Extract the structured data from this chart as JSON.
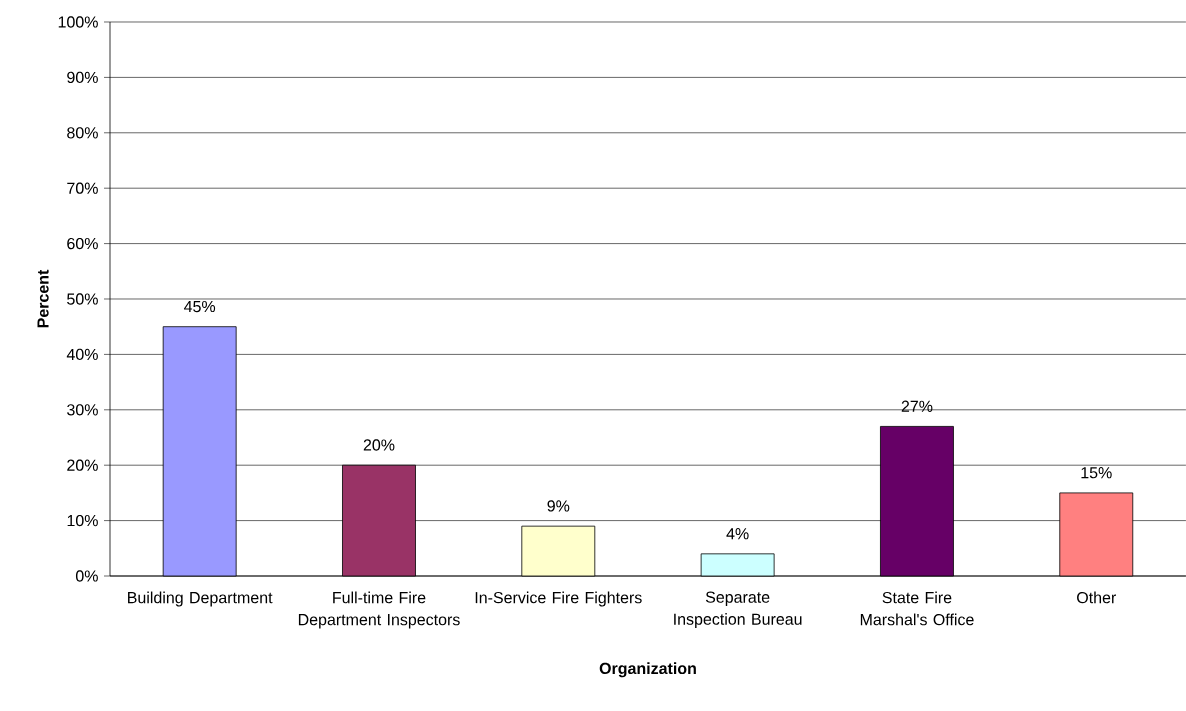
{
  "chart_data": {
    "type": "bar",
    "xlabel": "Organization",
    "ylabel": "Percent",
    "categories": [
      "Building Department",
      "Full-time Fire Department Inspectors",
      "In-Service Fire Fighters",
      "Separate Inspection Bureau",
      "State Fire Marshal's Office",
      "Other"
    ],
    "values": [
      45,
      20,
      9,
      4,
      27,
      15
    ],
    "value_labels": [
      "45%",
      "20%",
      "9%",
      "4%",
      "27%",
      "15%"
    ],
    "colors": [
      "#9999ff",
      "#993366",
      "#ffffcc",
      "#ccffff",
      "#660066",
      "#ff8080"
    ],
    "ylim": [
      0,
      100
    ],
    "yticks": [
      {
        "value": 0,
        "label": "0%"
      },
      {
        "value": 10,
        "label": "10%"
      },
      {
        "value": 20,
        "label": "20%"
      },
      {
        "value": 30,
        "label": "30%"
      },
      {
        "value": 40,
        "label": "40%"
      },
      {
        "value": 50,
        "label": "50%"
      },
      {
        "value": 60,
        "label": "60%"
      },
      {
        "value": 70,
        "label": "70%"
      },
      {
        "value": 80,
        "label": "80%"
      },
      {
        "value": 90,
        "label": "90%"
      },
      {
        "value": 100,
        "label": "100%"
      }
    ],
    "grid": "y"
  }
}
